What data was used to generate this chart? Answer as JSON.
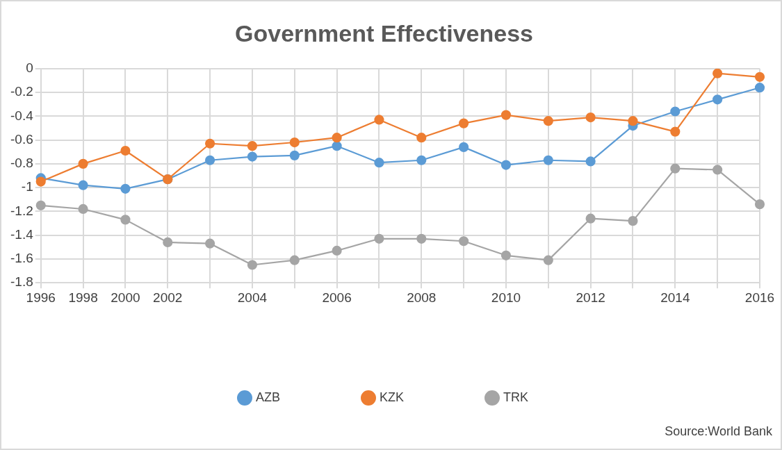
{
  "chart_data": {
    "type": "line",
    "title": "Government Effectiveness",
    "categories": [
      "1996",
      "1998",
      "2000",
      "2002",
      null,
      "2004",
      null,
      "2006",
      null,
      "2008",
      null,
      "2010",
      null,
      "2012",
      null,
      "2014",
      null,
      "2016"
    ],
    "series": [
      {
        "name": "AZB",
        "color": "#5b9bd5",
        "values": [
          -0.92,
          -0.98,
          -1.01,
          -0.93,
          -0.77,
          -0.74,
          -0.73,
          -0.65,
          -0.79,
          -0.77,
          -0.66,
          -0.81,
          -0.77,
          -0.78,
          -0.48,
          -0.36,
          -0.26,
          -0.16
        ]
      },
      {
        "name": "KZK",
        "color": "#ed7d31",
        "values": [
          -0.95,
          -0.8,
          -0.69,
          -0.93,
          -0.63,
          -0.65,
          -0.62,
          -0.58,
          -0.43,
          -0.58,
          -0.46,
          -0.39,
          -0.44,
          -0.41,
          -0.44,
          -0.53,
          -0.04,
          -0.07
        ]
      },
      {
        "name": "TRK",
        "color": "#a5a5a5",
        "values": [
          -1.15,
          -1.18,
          -1.27,
          -1.46,
          -1.47,
          -1.65,
          -1.61,
          -1.53,
          -1.43,
          -1.43,
          -1.45,
          -1.57,
          -1.61,
          -1.26,
          -1.28,
          -0.84,
          -0.85,
          -1.14
        ]
      }
    ],
    "ylim": [
      -1.8,
      0
    ],
    "yticks": [
      -1.8,
      -1.6,
      -1.4,
      -1.2,
      -1,
      -0.8,
      -0.6,
      -0.4,
      -0.2,
      0
    ],
    "grid": true,
    "legend": "bottom",
    "marker": "circle",
    "line_style": "solid",
    "annotations": [
      "Source:World Bank"
    ]
  }
}
